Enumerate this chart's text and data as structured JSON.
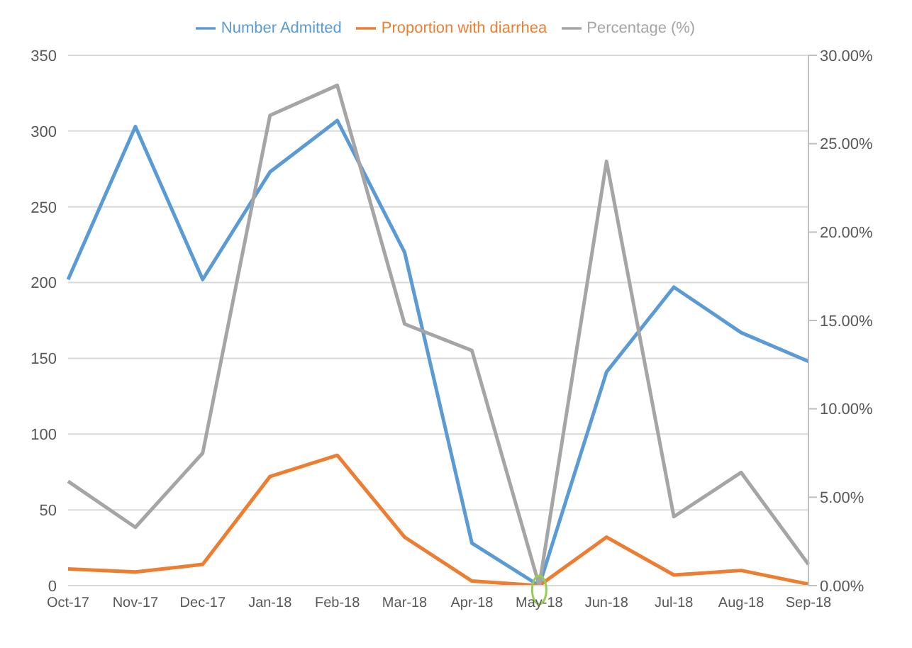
{
  "chart_data": {
    "type": "line",
    "categories": [
      "Oct-17",
      "Nov-17",
      "Dec-17",
      "Jan-18",
      "Feb-18",
      "Mar-18",
      "Apr-18",
      "May-18",
      "Jun-18",
      "Jul-18",
      "Aug-18",
      "Sep-18"
    ],
    "series": [
      {
        "name": "Number Admitted",
        "color": "#5b9bd5",
        "values": [
          202,
          303,
          202,
          273,
          307,
          220,
          28,
          0,
          141,
          197,
          167,
          148
        ]
      },
      {
        "name": "Proportion with diarrhea",
        "color": "#ed7d31",
        "values": [
          11,
          9,
          14,
          72,
          86,
          32,
          3,
          0,
          32,
          7,
          10,
          1
        ]
      },
      {
        "name": "Percentage (%)",
        "color": "#a5a5a5",
        "axis": "y2",
        "values": [
          5.9,
          3.3,
          7.5,
          26.6,
          28.3,
          14.8,
          13.3,
          0,
          24.0,
          3.9,
          6.4,
          1.2
        ]
      }
    ],
    "ylim": [
      0,
      350
    ],
    "yticks": [
      0,
      50,
      100,
      150,
      200,
      250,
      300,
      350
    ],
    "y2lim": [
      0,
      30
    ],
    "y2ticks": [
      {
        "value": 0,
        "label": "0.00%"
      },
      {
        "value": 5,
        "label": "5.00%"
      },
      {
        "value": 10,
        "label": "10.00%"
      },
      {
        "value": 15,
        "label": "15.00%"
      },
      {
        "value": 20,
        "label": "20.00%"
      },
      {
        "value": 25,
        "label": "25.00%"
      },
      {
        "value": 30,
        "label": "30.00%"
      }
    ],
    "grid": "y",
    "legend": "top",
    "marker": "none",
    "line_style": "solid"
  }
}
